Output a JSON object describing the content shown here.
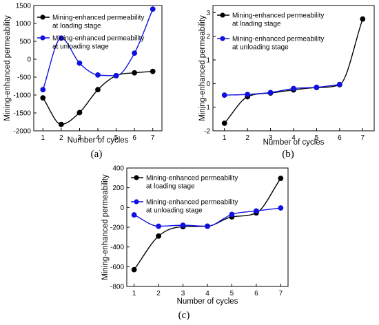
{
  "chart_data": [
    {
      "type": "line",
      "panel_label": "(a)",
      "xlabel": "Number of cycles",
      "ylabel": "Mining-enhanced permeability",
      "x": [
        1,
        2,
        3,
        4,
        5,
        6,
        7
      ],
      "xlim": [
        0.5,
        7.5
      ],
      "ylim": [
        -2000,
        1500
      ],
      "xticks": [
        1,
        2,
        3,
        4,
        5,
        6,
        7
      ],
      "yticks": [
        -2000,
        -1500,
        -1000,
        -500,
        0,
        500,
        1000,
        1500
      ],
      "legend_position": "top-left",
      "series": [
        {
          "name_line1": "Mining-enhanced permeability",
          "name_line2": "at loading stage",
          "color": "#000000",
          "values": [
            -1080,
            -1820,
            -1490,
            -850,
            -460,
            -380,
            -340
          ]
        },
        {
          "name_line1": "Mining-enhanced permeability",
          "name_line2": "at unloading stage",
          "color": "#1010e0",
          "values": [
            -850,
            590,
            -110,
            -440,
            -460,
            170,
            1400
          ]
        }
      ]
    },
    {
      "type": "line",
      "panel_label": "(b)",
      "xlabel": "Number of cycles",
      "ylabel": "Mining-enhanced permeability",
      "x": [
        1,
        2,
        3,
        4,
        5,
        6,
        7
      ],
      "xlim": [
        0.5,
        7.5
      ],
      "ylim": [
        -2,
        3.3
      ],
      "xticks": [
        1,
        2,
        3,
        4,
        5,
        6,
        7
      ],
      "yticks": [
        -2,
        -1,
        0,
        1,
        2,
        3
      ],
      "legend_position": "top-left",
      "series": [
        {
          "name_line1": "Mining-enhanced permeability",
          "name_line2": "at loading stage",
          "color": "#000000",
          "values": [
            -1.68,
            -0.56,
            -0.4,
            -0.27,
            -0.17,
            -0.05,
            2.73
          ]
        },
        {
          "name_line1": "Mining-enhanced permeability",
          "name_line2": "at unloading stage",
          "color": "#1010e0",
          "values": [
            -0.49,
            -0.46,
            -0.38,
            -0.21,
            -0.16,
            -0.04,
            null
          ]
        }
      ]
    },
    {
      "type": "line",
      "panel_label": "(c)",
      "xlabel": "Number of cycles",
      "ylabel": "Mining-enhanced permeability",
      "x": [
        1,
        2,
        3,
        4,
        5,
        6,
        7
      ],
      "xlim": [
        0.7,
        7.3
      ],
      "ylim": [
        -800,
        400
      ],
      "xticks": [
        1,
        2,
        3,
        4,
        5,
        6,
        7
      ],
      "yticks": [
        -800,
        -600,
        -400,
        -200,
        0,
        200,
        400
      ],
      "legend_position": "top-left",
      "series": [
        {
          "name_line1": "Mining-enhanced permeability",
          "name_line2": "at loading stage",
          "color": "#000000",
          "values": [
            -630,
            -290,
            -195,
            -190,
            -95,
            -55,
            295
          ]
        },
        {
          "name_line1": "Mining-enhanced permeability",
          "name_line2": "at unloading stage",
          "color": "#1010e0",
          "values": [
            -75,
            -190,
            -180,
            -190,
            -70,
            -35,
            -5
          ]
        }
      ]
    }
  ]
}
